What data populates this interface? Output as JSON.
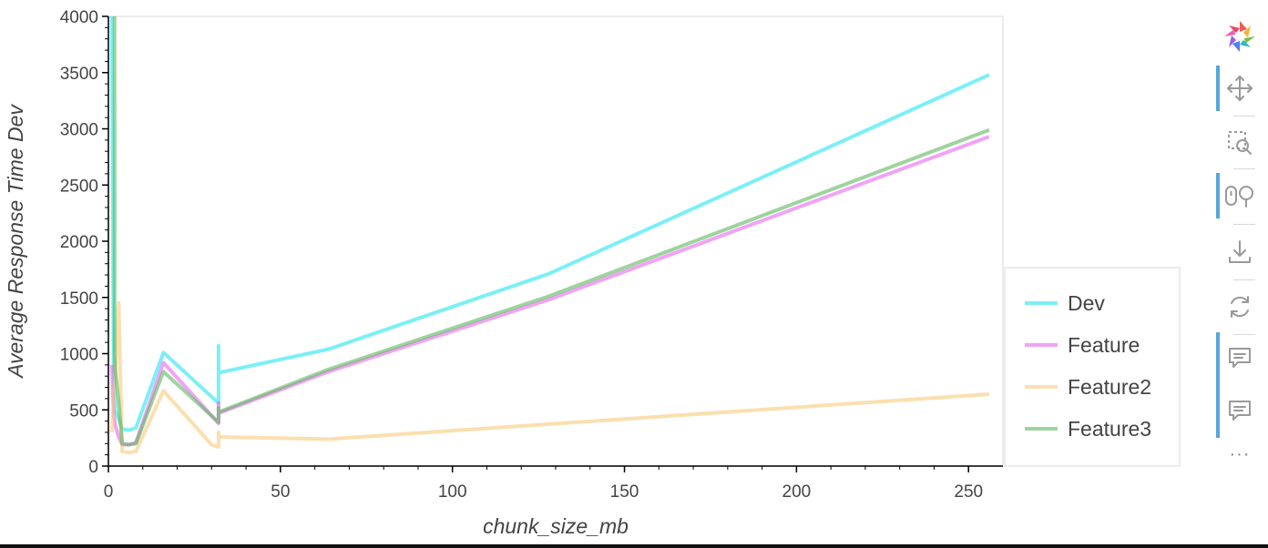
{
  "chart_data": {
    "type": "line",
    "title": "",
    "xlabel": "chunk_size_mb",
    "ylabel": "Average Response Time Dev",
    "xlim": [
      0,
      260
    ],
    "ylim": [
      0,
      4000
    ],
    "x_ticks": [
      0,
      50,
      100,
      150,
      200,
      250
    ],
    "y_ticks": [
      0,
      500,
      1000,
      1500,
      2000,
      2500,
      3000,
      3500,
      4000
    ],
    "grid": false,
    "legend_position": "right",
    "series": [
      {
        "name": "Dev",
        "color": "#22e6f0",
        "x": [
          1,
          1.5,
          2,
          3,
          4,
          6,
          8,
          16,
          32,
          32,
          32,
          64,
          128,
          256
        ],
        "y": [
          4000,
          900,
          500,
          420,
          330,
          320,
          340,
          1010,
          560,
          1070,
          830,
          1040,
          1710,
          3480
        ]
      },
      {
        "name": "Feature",
        "color": "#e766f0",
        "x": [
          1,
          1.5,
          2,
          3,
          4,
          6,
          8,
          16,
          32,
          32,
          32,
          64,
          128,
          256
        ],
        "y": [
          900,
          480,
          360,
          260,
          190,
          190,
          210,
          920,
          380,
          560,
          470,
          840,
          1480,
          2930
        ]
      },
      {
        "name": "Feature2",
        "color": "#f8c979",
        "x": [
          1,
          2,
          3,
          4,
          6,
          8,
          16,
          30,
          32,
          32,
          32,
          64,
          256
        ],
        "y": [
          300,
          820,
          1450,
          130,
          120,
          130,
          670,
          190,
          170,
          300,
          260,
          240,
          640
        ]
      },
      {
        "name": "Feature3",
        "color": "#5cb85c",
        "x": [
          1.8,
          1.8,
          2,
          3,
          4,
          6,
          8,
          16,
          32,
          32,
          32,
          64,
          128,
          256
        ],
        "y": [
          4000,
          1000,
          850,
          570,
          200,
          190,
          200,
          840,
          390,
          520,
          480,
          860,
          1510,
          2990
        ]
      }
    ]
  },
  "toolbar": {
    "tools": [
      {
        "name": "logo",
        "icon": "bokeh-logo-icon"
      },
      {
        "name": "pan",
        "icon": "pan-icon",
        "active": true
      },
      {
        "name": "box-zoom",
        "icon": "box-zoom-icon",
        "active": false
      },
      {
        "name": "wheel-zoom",
        "icon": "wheel-zoom-icon",
        "active": true
      },
      {
        "name": "save",
        "icon": "save-icon",
        "active": false
      },
      {
        "name": "reset",
        "icon": "reset-icon",
        "active": false
      },
      {
        "name": "hover-1",
        "icon": "hover-icon",
        "active": true
      },
      {
        "name": "hover-2",
        "icon": "hover-icon",
        "active": true
      }
    ],
    "more_label": "···"
  }
}
